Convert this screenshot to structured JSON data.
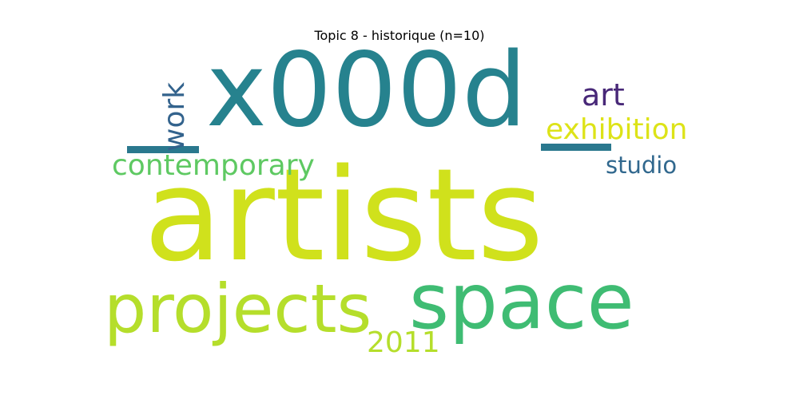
{
  "title": "Topic 8 - historique (n=10)",
  "words": [
    {
      "text": "artists",
      "color": "#d0e11c"
    },
    {
      "text": "x000d",
      "color": "#26828e"
    },
    {
      "text": "space",
      "color": "#3fbc73"
    },
    {
      "text": "projects",
      "color": "#b5de2b"
    },
    {
      "text": "contemporary",
      "color": "#5ec962"
    },
    {
      "text": "exhibition",
      "color": "#dde318"
    },
    {
      "text": "studio",
      "color": "#31688e"
    },
    {
      "text": "art",
      "color": "#482878"
    },
    {
      "text": "2011",
      "color": "#b5de2b"
    },
    {
      "text": "work",
      "color": "#33638d"
    }
  ],
  "marks": [
    {
      "text": "_",
      "color": "#2a788e"
    },
    {
      "text": "_",
      "color": "#2a788e"
    }
  ]
}
